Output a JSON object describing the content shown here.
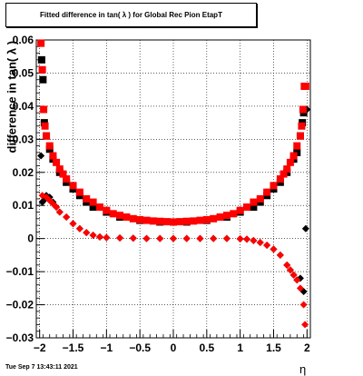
{
  "title": "Fitted difference in tan( λ ) for Global Rec Pion EtapT",
  "footer": "Tue Sep  7 13:43:11 2021",
  "chart_data": {
    "type": "scatter",
    "title": "Fitted difference in tan( λ ) for Global Rec Pion EtapT",
    "xlabel": "η",
    "ylabel": "difference in tan( λ )",
    "xlim": [
      -2.05,
      2.05
    ],
    "ylim": [
      -0.03,
      0.06
    ],
    "grid": true,
    "x_ticks": [
      -2,
      -1.5,
      -1,
      -0.5,
      0,
      0.5,
      1,
      1.5,
      2
    ],
    "x_tick_labels": [
      "−2",
      "−1.5",
      "−1",
      "−0.5",
      "0",
      "0.5",
      "1",
      "1.5",
      "2"
    ],
    "y_ticks": [
      -0.03,
      -0.02,
      -0.01,
      0,
      0.01,
      0.02,
      0.03,
      0.04,
      0.05,
      0.06
    ],
    "y_tick_labels": [
      "−0.03",
      "−0.02",
      "−0.01",
      "0",
      "0.01",
      "0.02",
      "0.03",
      "0.04",
      "0.05",
      "0.06"
    ],
    "series": [
      {
        "marker": "diamond",
        "color": "#000000",
        "x": [
          -1.98,
          -1.96,
          -1.94,
          -1.92,
          -1.9,
          -1.85,
          -1.8,
          -1.75,
          -1.7,
          -1.6,
          -1.5,
          -1.4,
          -1.3,
          -1.2,
          -1.1,
          -1.0,
          -0.8,
          -0.6,
          -0.4,
          -0.2,
          0.0,
          0.2,
          0.4,
          0.6,
          0.8,
          1.0,
          1.1,
          1.2,
          1.3,
          1.4,
          1.5,
          1.6,
          1.7,
          1.75,
          1.8,
          1.85,
          1.9,
          1.95,
          1.98,
          2.0
        ],
        "y": [
          0.025,
          0.011,
          0.0115,
          0.012,
          0.013,
          0.0125,
          0.011,
          0.0095,
          0.008,
          0.0065,
          0.0045,
          0.003,
          0.0018,
          0.001,
          0.0005,
          0.0003,
          0.0002,
          0.0001,
          0.0,
          0.0,
          0.0,
          0.0,
          0.0,
          0.0,
          0.0,
          -0.0001,
          -0.0002,
          -0.0006,
          -0.0012,
          -0.002,
          -0.0032,
          -0.005,
          -0.008,
          -0.0095,
          -0.011,
          -0.0125,
          -0.012,
          -0.016,
          0.003,
          0.039
        ]
      },
      {
        "marker": "square",
        "color": "#000000",
        "x": [
          -1.97,
          -1.95,
          -1.93,
          -1.9,
          -1.85,
          -1.8,
          -1.7,
          -1.6,
          -1.5,
          -1.4,
          -1.3,
          -1.2,
          -1.0,
          -0.8,
          -0.5,
          -0.2,
          0.0,
          0.2,
          0.5,
          0.8,
          1.0,
          1.2,
          1.3,
          1.4,
          1.5,
          1.6,
          1.7,
          1.8,
          1.85,
          1.9,
          1.93,
          1.95
        ],
        "y": [
          0.054,
          0.048,
          0.035,
          0.031,
          0.027,
          0.024,
          0.02,
          0.017,
          0.015,
          0.013,
          0.011,
          0.0095,
          0.008,
          0.0065,
          0.0055,
          0.005,
          0.005,
          0.005,
          0.0055,
          0.0065,
          0.008,
          0.0095,
          0.011,
          0.013,
          0.015,
          0.017,
          0.02,
          0.024,
          0.026,
          0.031,
          0.035,
          0.038
        ]
      },
      {
        "marker": "square",
        "color": "#ff0000",
        "x": [
          -1.98,
          -1.96,
          -1.94,
          -1.92,
          -1.9,
          -1.85,
          -1.8,
          -1.75,
          -1.7,
          -1.65,
          -1.6,
          -1.5,
          -1.4,
          -1.3,
          -1.2,
          -1.1,
          -1.0,
          -0.9,
          -0.8,
          -0.7,
          -0.6,
          -0.5,
          -0.4,
          -0.3,
          -0.2,
          -0.1,
          0.0,
          0.1,
          0.2,
          0.3,
          0.4,
          0.5,
          0.6,
          0.7,
          0.8,
          0.9,
          1.0,
          1.1,
          1.2,
          1.3,
          1.4,
          1.5,
          1.6,
          1.65,
          1.7,
          1.75,
          1.8,
          1.85,
          1.9,
          1.92,
          1.94,
          1.96,
          1.98
        ],
        "y": [
          0.059,
          0.051,
          0.039,
          0.034,
          0.031,
          0.028,
          0.025,
          0.023,
          0.021,
          0.0195,
          0.018,
          0.016,
          0.014,
          0.012,
          0.011,
          0.0095,
          0.0085,
          0.0075,
          0.007,
          0.0065,
          0.006,
          0.0057,
          0.0055,
          0.0053,
          0.0052,
          0.0051,
          0.005,
          0.0051,
          0.0052,
          0.0053,
          0.0055,
          0.0057,
          0.006,
          0.0065,
          0.007,
          0.0075,
          0.0085,
          0.0095,
          0.011,
          0.012,
          0.014,
          0.016,
          0.018,
          0.0195,
          0.021,
          0.023,
          0.025,
          0.028,
          0.031,
          0.034,
          0.039,
          0.046,
          0.046
        ]
      },
      {
        "marker": "diamond",
        "color": "#ff0000",
        "x": [
          -1.96,
          -1.9,
          -1.85,
          -1.8,
          -1.75,
          -1.7,
          -1.6,
          -1.5,
          -1.4,
          -1.3,
          -1.2,
          -1.1,
          -1.0,
          -0.8,
          -0.6,
          -0.4,
          -0.2,
          0.0,
          0.2,
          0.4,
          0.6,
          0.8,
          1.0,
          1.1,
          1.2,
          1.3,
          1.4,
          1.5,
          1.6,
          1.7,
          1.75,
          1.8,
          1.85,
          1.9,
          1.95,
          1.97
        ],
        "y": [
          0.013,
          0.0125,
          0.0115,
          0.0105,
          0.0095,
          0.008,
          0.0065,
          0.0045,
          0.003,
          0.0018,
          0.001,
          0.0005,
          0.0003,
          0.0002,
          0.0001,
          0.0,
          0.0,
          0.0,
          0.0,
          0.0,
          0.0,
          0.0,
          -0.0001,
          -0.0002,
          -0.0006,
          -0.0012,
          -0.002,
          -0.0032,
          -0.005,
          -0.008,
          -0.0095,
          -0.011,
          -0.0125,
          -0.015,
          -0.02,
          -0.026
        ]
      }
    ]
  }
}
